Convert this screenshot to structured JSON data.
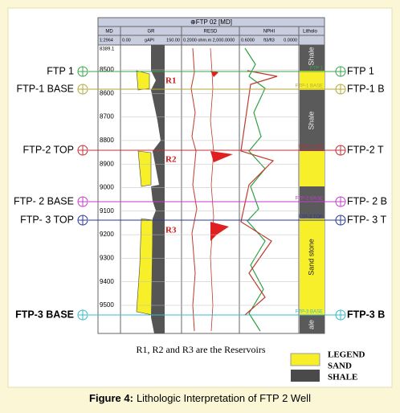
{
  "log_header": {
    "title": "⊕FTP 02 [MD]",
    "tracks": [
      "MD",
      "GR",
      "RESD",
      "NPHI",
      "Litholo"
    ],
    "scales": [
      "1:2964",
      "0.00",
      "gAPI",
      "150.00",
      "0.2000 ohm.m 2,000.0000",
      "0.6000",
      "ft3/ft3",
      "0.0000"
    ]
  },
  "depth_ticks": [
    "8389.1",
    "8500",
    "8600",
    "8700",
    "8800",
    "8900",
    "9000",
    "9100",
    "9200",
    "9300",
    "9400",
    "9500"
  ],
  "tops": [
    {
      "left": "FTP 1",
      "inner": "FTP 1",
      "right": "FTP 1",
      "color": "#3aa54a"
    },
    {
      "left": "FTP-1 BASE",
      "inner": "FTP-1 BASE",
      "right": "FTP-1 B",
      "color": "#b5a93a"
    },
    {
      "left": "FTP-2 TOP",
      "inner": "FTP-2 TOP",
      "right": "FTP-2 T",
      "color": "#c0303a"
    },
    {
      "left": "FTP- 2 BASE",
      "inner": "FTP-2 BASE",
      "right": "FTP- 2 B",
      "color": "#c33ec9"
    },
    {
      "left": "FTP- 3 TOP",
      "inner": "FTP-3 TOP",
      "right": "FTP- 3 T",
      "color": "#2a3a9a"
    },
    {
      "left": "FTP-3 BASE",
      "inner": "FTP-3 BASE",
      "right": "FTP-3 B",
      "color": "#39b9c9"
    }
  ],
  "reservoirs": [
    "R1",
    "R2",
    "R3"
  ],
  "lithology_labels": [
    "Shale",
    "Shale",
    "Sand stone",
    "ale"
  ],
  "note": "R1, R2 and R3 are the Reservoirs",
  "legend": {
    "title": "LEGEND",
    "items": [
      "SAND",
      "SHALE"
    ]
  },
  "caption": {
    "label": "Figure 4:",
    "text": "Lithologic Interpretation of FTP 2 Well"
  }
}
